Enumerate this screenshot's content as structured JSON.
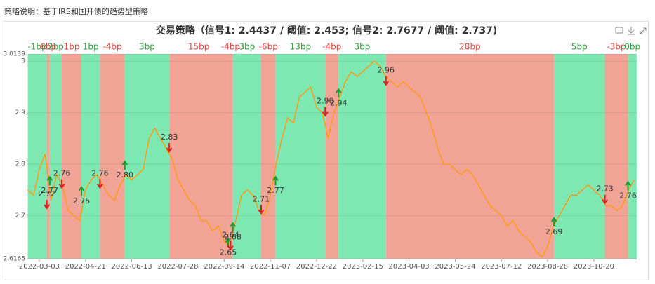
{
  "caption": "策略说明：基于IRS和国开债的趋势型策略",
  "chart_data": {
    "type": "line",
    "title": "交易策略（信号1: 2.4437 / 阈值: 2.453; 信号2: 2.7677 / 阈值: 2.737)",
    "categories": [
      null,
      null,
      "2022-03-03",
      null,
      null,
      null,
      null,
      null,
      null,
      null,
      "2022-04-21",
      null,
      null,
      null,
      null,
      null,
      null,
      null,
      "2022-06-13",
      null,
      null,
      null,
      null,
      null,
      null,
      null,
      "2022-07-28",
      null,
      null,
      null,
      null,
      null,
      null,
      null,
      "2022-09-14",
      null,
      null,
      null,
      null,
      null,
      null,
      null,
      "2022-11-07",
      null,
      null,
      null,
      null,
      null,
      null,
      null,
      "2022-12-22",
      null,
      null,
      null,
      null,
      null,
      null,
      null,
      "2023-02-15",
      null,
      null,
      null,
      null,
      null,
      null,
      null,
      "2023-04-03",
      null,
      null,
      null,
      null,
      null,
      null,
      null,
      "2023-05-24",
      null,
      null,
      null,
      null,
      null,
      null,
      null,
      "2023-07-12",
      null,
      null,
      null,
      null,
      null,
      null,
      null,
      "2023-08-28",
      null,
      null,
      null,
      null,
      null,
      null,
      null,
      "2023-10-20",
      null,
      null,
      null,
      null,
      null,
      null,
      null
    ],
    "values": [
      2.75,
      2.74,
      2.79,
      2.82,
      2.73,
      2.78,
      2.76,
      2.71,
      2.7,
      2.69,
      2.75,
      2.77,
      2.78,
      2.76,
      2.74,
      2.73,
      2.76,
      2.78,
      2.77,
      2.78,
      2.79,
      2.85,
      2.87,
      2.85,
      2.83,
      2.81,
      2.77,
      2.75,
      2.73,
      2.72,
      2.69,
      2.69,
      2.67,
      2.68,
      2.65,
      2.64,
      2.69,
      2.74,
      2.75,
      2.74,
      2.71,
      2.7,
      2.74,
      2.8,
      2.85,
      2.89,
      2.88,
      2.93,
      2.94,
      2.95,
      2.91,
      2.9,
      2.85,
      2.9,
      2.93,
      2.96,
      2.98,
      2.97,
      2.98,
      2.99,
      3.0,
      2.99,
      2.97,
      2.96,
      2.95,
      2.96,
      2.95,
      2.94,
      2.93,
      2.9,
      2.87,
      2.83,
      2.8,
      2.8,
      2.79,
      2.78,
      2.79,
      2.78,
      2.76,
      2.74,
      2.72,
      2.71,
      2.7,
      2.68,
      2.69,
      2.67,
      2.66,
      2.65,
      2.63,
      2.62,
      2.64,
      2.68,
      2.7,
      2.72,
      2.74,
      2.74,
      2.75,
      2.76,
      2.75,
      2.74,
      2.72,
      2.72,
      2.71,
      2.72,
      2.75,
      2.77
    ],
    "color": "#ff9a1a",
    "ylim": [
      2.6165,
      3.0139
    ],
    "yticks": [
      2.6165,
      2.7,
      2.8,
      2.9,
      3,
      3.0139
    ],
    "grid": true,
    "regions": {
      "start": [
        0,
        3.3,
        3.8,
        5.9,
        9.3,
        12.5,
        16.8,
        24.5,
        34.7,
        35.5,
        40.4,
        42.9,
        51.5,
        53.8,
        62.0,
        91.1,
        99.9,
        103.9
      ],
      "end": [
        3.3,
        3.8,
        5.9,
        9.3,
        12.5,
        16.8,
        24.5,
        34.7,
        35.5,
        40.4,
        42.9,
        51.5,
        53.8,
        62.0,
        91.1,
        99.9,
        103.9,
        105.4
      ],
      "side": [
        "long",
        "short",
        "long",
        "short",
        "long",
        "short",
        "long",
        "short",
        "short",
        "long",
        "short",
        "long",
        "short",
        "long",
        "short",
        "long",
        "short",
        "long"
      ],
      "pnl": [
        -1,
        6,
        2,
        1,
        1,
        -4,
        3,
        15,
        -4,
        3,
        -6,
        13,
        -4,
        3,
        28,
        5,
        -3,
        0
      ],
      "pnl_labels": [
        "-1bp",
        "6bp",
        "2bp",
        "1bp",
        "1bp",
        "-4bp",
        "3bp",
        "15bp",
        "-4bp",
        "3bp",
        "-6bp",
        "13bp",
        "-4bp",
        "3bp",
        "28bp",
        "5bp",
        "-3bp",
        "0bp"
      ]
    },
    "region_colors": {
      "long": "#7de8b1",
      "short": "#f1a496"
    },
    "region_label_colors": {
      "long": "#26a03a",
      "short": "#e5443a"
    },
    "buy": {
      "color": "#1b9a2e",
      "x": [
        3.8,
        9.3,
        16.8,
        34.7,
        35.5,
        42.9,
        53.8,
        91.1,
        103.9
      ],
      "values": [
        2.77,
        2.75,
        2.8,
        2.65,
        2.68,
        2.77,
        2.94,
        2.69,
        2.76
      ],
      "value_labels": [
        "2.77",
        "2.75",
        "2.80",
        "2.65",
        "2.68",
        "2.77",
        "2.94",
        "2.69",
        "2.76"
      ]
    },
    "sell": {
      "color": "#d82020",
      "x": [
        3.3,
        5.9,
        12.5,
        24.5,
        35.1,
        40.4,
        51.5,
        62.0,
        99.9
      ],
      "values": [
        2.72,
        2.76,
        2.76,
        2.83,
        2.64,
        2.71,
        2.9,
        2.96,
        2.73
      ],
      "value_labels": [
        "2.72",
        "2.76",
        "2.76",
        "2.83",
        "2.64",
        "2.71",
        "2.90",
        "2.96",
        "2.73"
      ]
    }
  }
}
